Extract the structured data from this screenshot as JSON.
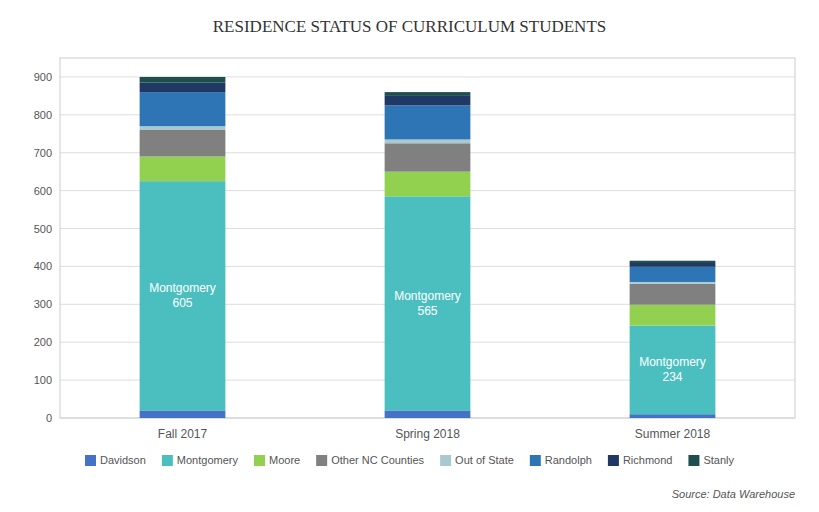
{
  "chart_data": {
    "type": "bar",
    "stacked": true,
    "title": "RESIDENCE STATUS OF CURRICULUM STUDENTS",
    "categories": [
      "Fall 2017",
      "Spring 2018",
      "Summer 2018"
    ],
    "series": [
      {
        "name": "Davidson",
        "color": "#4472C4",
        "values": [
          20,
          20,
          10
        ]
      },
      {
        "name": "Montgomery",
        "color": "#4BBFBF",
        "values": [
          605,
          565,
          234
        ],
        "data_labels": true,
        "value_labels": [
          "Montgomery\n605",
          "Montgomery\n565",
          "Montgomery\n234"
        ]
      },
      {
        "name": "Moore",
        "color": "#92D050",
        "values": [
          65,
          65,
          55
        ]
      },
      {
        "name": "Other NC Counties",
        "color": "#808080",
        "values": [
          70,
          75,
          55
        ]
      },
      {
        "name": "Out of State",
        "color": "#A9C8D0",
        "values": [
          10,
          10,
          5
        ]
      },
      {
        "name": "Randolph",
        "color": "#2E75B6",
        "values": [
          90,
          90,
          40
        ]
      },
      {
        "name": "Richmond",
        "color": "#1F3864",
        "values": [
          25,
          25,
          10
        ]
      },
      {
        "name": "Stanly",
        "color": "#1F4E4E",
        "values": [
          15,
          10,
          6
        ]
      }
    ],
    "ylim": [
      0,
      950
    ],
    "yticks": [
      0,
      100,
      200,
      300,
      400,
      500,
      600,
      700,
      800,
      900
    ],
    "grid": true,
    "legend": "bottom",
    "annotations": [
      "Source: Data Warehouse"
    ]
  }
}
